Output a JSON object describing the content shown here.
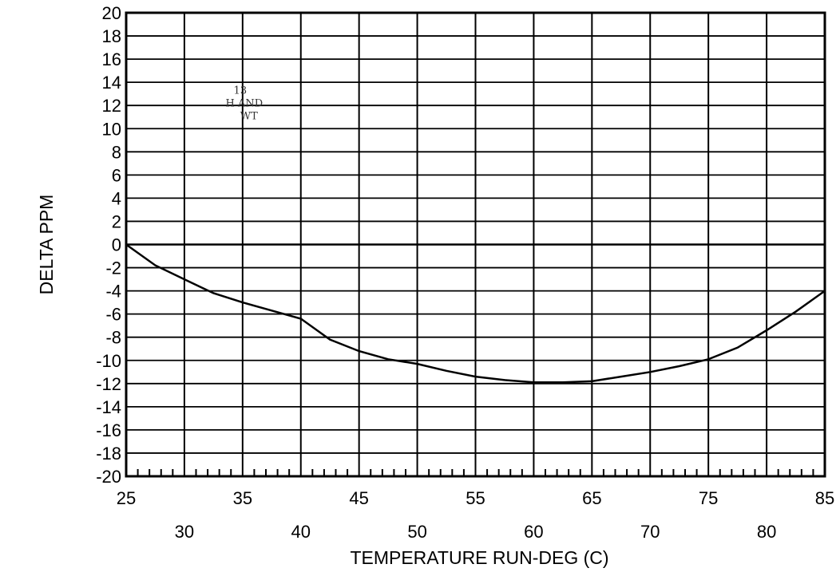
{
  "chart_data": {
    "type": "line",
    "xlabel": "TEMPERATURE RUN-DEG (C)",
    "ylabel": "DELTA PPM",
    "xlim": [
      25,
      85
    ],
    "ylim": [
      -20,
      20
    ],
    "x_ticks_upper": [
      25,
      35,
      45,
      55,
      65,
      75,
      85
    ],
    "x_ticks_lower": [
      30,
      40,
      50,
      60,
      70,
      80
    ],
    "y_ticks": [
      20,
      18,
      16,
      14,
      12,
      10,
      8,
      6,
      4,
      2,
      0,
      -2,
      -4,
      -6,
      -8,
      -10,
      -12,
      -14,
      -16,
      -18,
      -20
    ],
    "grid": true,
    "series": [
      {
        "x": [
          25,
          27.5,
          30,
          32.5,
          35,
          37.5,
          40,
          42.5,
          45,
          47.5,
          50,
          52.5,
          55,
          57.5,
          60,
          62.5,
          65,
          67.5,
          70,
          72.5,
          75,
          77.5,
          80,
          82.5,
          85
        ],
        "y": [
          0,
          -1.8,
          -3.0,
          -4.2,
          -5.0,
          -5.7,
          -6.4,
          -8.2,
          -9.2,
          -9.9,
          -10.3,
          -10.9,
          -11.4,
          -11.7,
          -11.9,
          -11.9,
          -11.8,
          -11.4,
          -11.0,
          -10.5,
          -9.9,
          -8.9,
          -7.4,
          -5.8,
          -4.0
        ]
      }
    ],
    "annotation_lines": [
      "13",
      "H AND",
      "WT"
    ]
  }
}
